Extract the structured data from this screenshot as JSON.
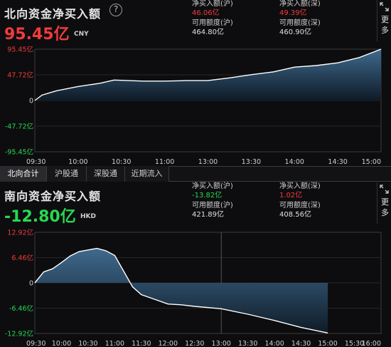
{
  "north": {
    "title": "北向资金净买入额",
    "help_glyph": "?",
    "value": "95.45亿",
    "currency": "CNY",
    "net_buy_sh_label": "净买入额(沪)",
    "net_buy_sh_value": "46.06亿",
    "net_buy_sz_label": "净买入额(深)",
    "net_buy_sz_value": "49.39亿",
    "avail_sh_label": "可用额度(沪)",
    "avail_sh_value": "464.80亿",
    "avail_sz_label": "可用额度(深)",
    "avail_sz_value": "460.90亿",
    "more_label": "更多",
    "expand_icon": "expand-icon"
  },
  "tabs": [
    {
      "label": "北向合计",
      "active": true
    },
    {
      "label": "沪股通",
      "active": false
    },
    {
      "label": "深股通",
      "active": false
    },
    {
      "label": "近期流入",
      "active": false
    }
  ],
  "south": {
    "title": "南向资金净买入额",
    "value": "-12.80亿",
    "currency": "HKD",
    "net_buy_sh_label": "净买入额(沪)",
    "net_buy_sh_value": "-13.82亿",
    "net_buy_sz_label": "净买入额(深)",
    "net_buy_sz_value": "1.02亿",
    "avail_sh_label": "可用额度(沪)",
    "avail_sh_value": "421.89亿",
    "avail_sz_label": "可用额度(深)",
    "avail_sz_value": "408.56亿",
    "more_label": "更多",
    "expand_icon": "expand-icon"
  },
  "colors": {
    "up": "#f23b3b",
    "down": "#27d94f",
    "line": "#ffffff",
    "fill_top": "#3f6a8e",
    "fill_bottom": "#0f1b27",
    "grid": "#3a3a3a"
  },
  "chart_data": [
    {
      "type": "area",
      "name_hint": "north",
      "x_ticks": [
        "09:30",
        "10:00",
        "10:30",
        "11:00",
        "13:00",
        "13:30",
        "14:00",
        "14:30",
        "15:00"
      ],
      "y_tick_labels": [
        "95.45亿",
        "47.72亿",
        "0",
        "-47.72亿",
        "-95.45亿"
      ],
      "ylim": [
        -95.45,
        95.45
      ],
      "points": [
        [
          "09:30",
          0
        ],
        [
          "09:35",
          10
        ],
        [
          "09:45",
          18
        ],
        [
          "10:00",
          26
        ],
        [
          "10:15",
          32
        ],
        [
          "10:25",
          38
        ],
        [
          "10:35",
          37
        ],
        [
          "10:45",
          36
        ],
        [
          "11:00",
          36
        ],
        [
          "11:15",
          37
        ],
        [
          "11:30",
          37
        ],
        [
          "13:00",
          37
        ],
        [
          "13:15",
          42
        ],
        [
          "13:30",
          48
        ],
        [
          "13:45",
          53
        ],
        [
          "14:00",
          62
        ],
        [
          "14:15",
          65
        ],
        [
          "14:30",
          70
        ],
        [
          "14:45",
          80
        ],
        [
          "15:00",
          95.45
        ]
      ]
    },
    {
      "type": "area",
      "name_hint": "south",
      "x_ticks": [
        "09:30",
        "10:00",
        "10:30",
        "11:00",
        "11:30",
        "12:00",
        "12:30",
        "13:00",
        "13:30",
        "14:00",
        "14:30",
        "15:00",
        "15:30",
        "16:00"
      ],
      "y_tick_labels": [
        "12.92亿",
        "6.46亿",
        "0",
        "-6.46亿",
        "-12.92亿"
      ],
      "ylim": [
        -12.92,
        12.92
      ],
      "points": [
        [
          "09:30",
          0
        ],
        [
          "09:40",
          2.8
        ],
        [
          "09:50",
          3.6
        ],
        [
          "10:00",
          5.2
        ],
        [
          "10:10",
          6.9
        ],
        [
          "10:20",
          8.0
        ],
        [
          "10:30",
          8.4
        ],
        [
          "10:40",
          8.8
        ],
        [
          "10:50",
          8.2
        ],
        [
          "11:00",
          7.0
        ],
        [
          "11:10",
          3.0
        ],
        [
          "11:20",
          -1.0
        ],
        [
          "11:30",
          -3.0
        ],
        [
          "11:45",
          -4.2
        ],
        [
          "12:00",
          -5.4
        ],
        [
          "12:15",
          -5.6
        ],
        [
          "12:30",
          -6.0
        ],
        [
          "13:00",
          -6.6
        ],
        [
          "13:30",
          -8.0
        ],
        [
          "14:00",
          -9.6
        ],
        [
          "14:30",
          -11.4
        ],
        [
          "15:00",
          -12.8
        ]
      ]
    }
  ]
}
